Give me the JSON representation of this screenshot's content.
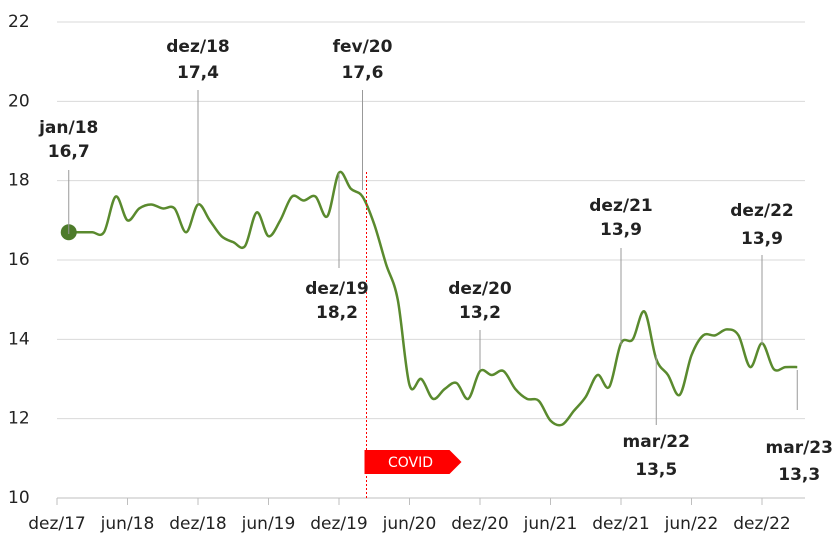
{
  "chart_data": {
    "type": "line",
    "categories": [
      "dez/17",
      null,
      null,
      null,
      null,
      null,
      "jun/18",
      null,
      null,
      null,
      null,
      null,
      "dez/18",
      null,
      null,
      null,
      null,
      null,
      "jun/19",
      null,
      null,
      null,
      null,
      null,
      "dez/19",
      null,
      null,
      null,
      null,
      null,
      "jun/20",
      null,
      null,
      null,
      null,
      null,
      "dez/20",
      null,
      null,
      null,
      null,
      null,
      "jun/21",
      null,
      null,
      null,
      null,
      null,
      "dez/21",
      null,
      null,
      null,
      null,
      null,
      "jun/22",
      null,
      null,
      null,
      null,
      null,
      "dez/22",
      null,
      null,
      null
    ],
    "values": [
      null,
      16.7,
      16.7,
      16.7,
      16.7,
      17.6,
      17.0,
      17.3,
      17.4,
      17.3,
      17.3,
      16.7,
      17.4,
      17.0,
      16.6,
      16.45,
      16.35,
      17.2,
      16.6,
      17.0,
      17.6,
      17.5,
      17.6,
      17.1,
      18.2,
      17.8,
      17.6,
      16.9,
      15.9,
      15.0,
      12.85,
      13.0,
      12.5,
      12.75,
      12.9,
      12.5,
      13.2,
      13.1,
      13.2,
      12.75,
      12.5,
      12.45,
      11.95,
      11.85,
      12.2,
      12.55,
      13.1,
      12.8,
      13.9,
      14.0,
      14.7,
      13.5,
      13.1,
      12.6,
      13.6,
      14.1,
      14.1,
      14.25,
      14.1,
      13.3,
      13.9,
      13.25,
      13.3,
      13.3
    ],
    "point_labels": [
      null,
      "jan/18",
      null,
      null,
      null,
      null,
      null,
      null,
      null,
      null,
      null,
      null,
      "dez/18",
      null,
      null,
      null,
      null,
      null,
      null,
      null,
      null,
      null,
      null,
      null,
      "dez/19",
      null,
      "fev/20",
      null,
      null,
      null,
      null,
      null,
      null,
      null,
      null,
      null,
      "dez/20",
      null,
      null,
      null,
      null,
      null,
      null,
      null,
      null,
      null,
      null,
      null,
      "dez/21",
      null,
      null,
      "mar/22",
      null,
      null,
      null,
      null,
      null,
      null,
      null,
      null,
      "dez/22",
      null,
      null,
      "mar/23"
    ],
    "value_labels": [
      null,
      "16,7",
      null,
      null,
      null,
      null,
      null,
      null,
      null,
      null,
      null,
      null,
      "17,4",
      null,
      null,
      null,
      null,
      null,
      null,
      null,
      null,
      null,
      null,
      null,
      "18,2",
      null,
      "17,6",
      null,
      null,
      null,
      null,
      null,
      null,
      null,
      null,
      null,
      "13,2",
      null,
      null,
      null,
      null,
      null,
      null,
      null,
      null,
      null,
      null,
      null,
      "13,9",
      null,
      null,
      "13,5",
      null,
      null,
      null,
      null,
      null,
      null,
      null,
      null,
      "13,9",
      null,
      null,
      "13,3"
    ],
    "event_label": "COVID",
    "color": "#5a8a2e",
    "ylim": [
      10,
      22
    ],
    "yticks": [
      10,
      12,
      14,
      16,
      18,
      20,
      22
    ],
    "grid": true
  }
}
